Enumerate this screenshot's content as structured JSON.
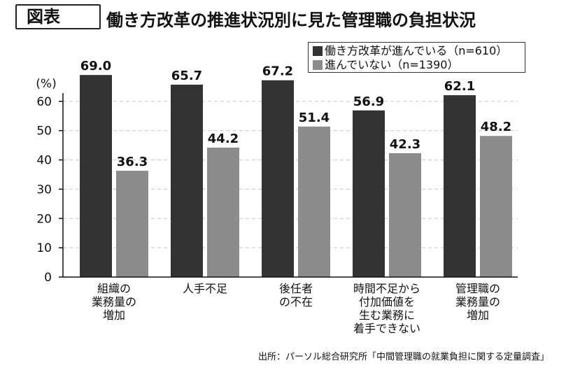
{
  "figure": {
    "badge": "図表",
    "title": "働き方改革の推進状況別に見た管理職の負担状況",
    "source": "出所：パーソル総合研究所「中間管理職の就業負担に関する定量調査」"
  },
  "colors": {
    "series_1": "#333333",
    "series_2": "#8c8c8c",
    "axis": "#111111",
    "grid": "#c8c8c8"
  },
  "chart_data": {
    "type": "bar",
    "y_unit_label": "(%)",
    "ylim": [
      0,
      70
    ],
    "yticks": [
      0,
      10,
      20,
      30,
      40,
      50,
      60
    ],
    "grid": true,
    "legend_position": "top-right",
    "categories": [
      [
        "組織の",
        "業務量の",
        "増加"
      ],
      [
        "人手不足"
      ],
      [
        "後任者",
        "の不在"
      ],
      [
        "時間不足から",
        "付加価値を",
        "生む業務に",
        "着手できない"
      ],
      [
        "管理職の",
        "業務量の",
        "増加"
      ]
    ],
    "series": [
      {
        "name": "働き方改革が進んでいる（n=610）",
        "values": [
          69.0,
          65.7,
          67.2,
          56.9,
          62.1
        ],
        "labels": [
          "69.0",
          "65.7",
          "67.2",
          "56.9",
          "62.1"
        ]
      },
      {
        "name": "進んでいない（n=1390）",
        "values": [
          36.3,
          44.2,
          51.4,
          42.3,
          48.2
        ],
        "labels": [
          "36.3",
          "44.2",
          "51.4",
          "42.3",
          "48.2"
        ]
      }
    ]
  }
}
